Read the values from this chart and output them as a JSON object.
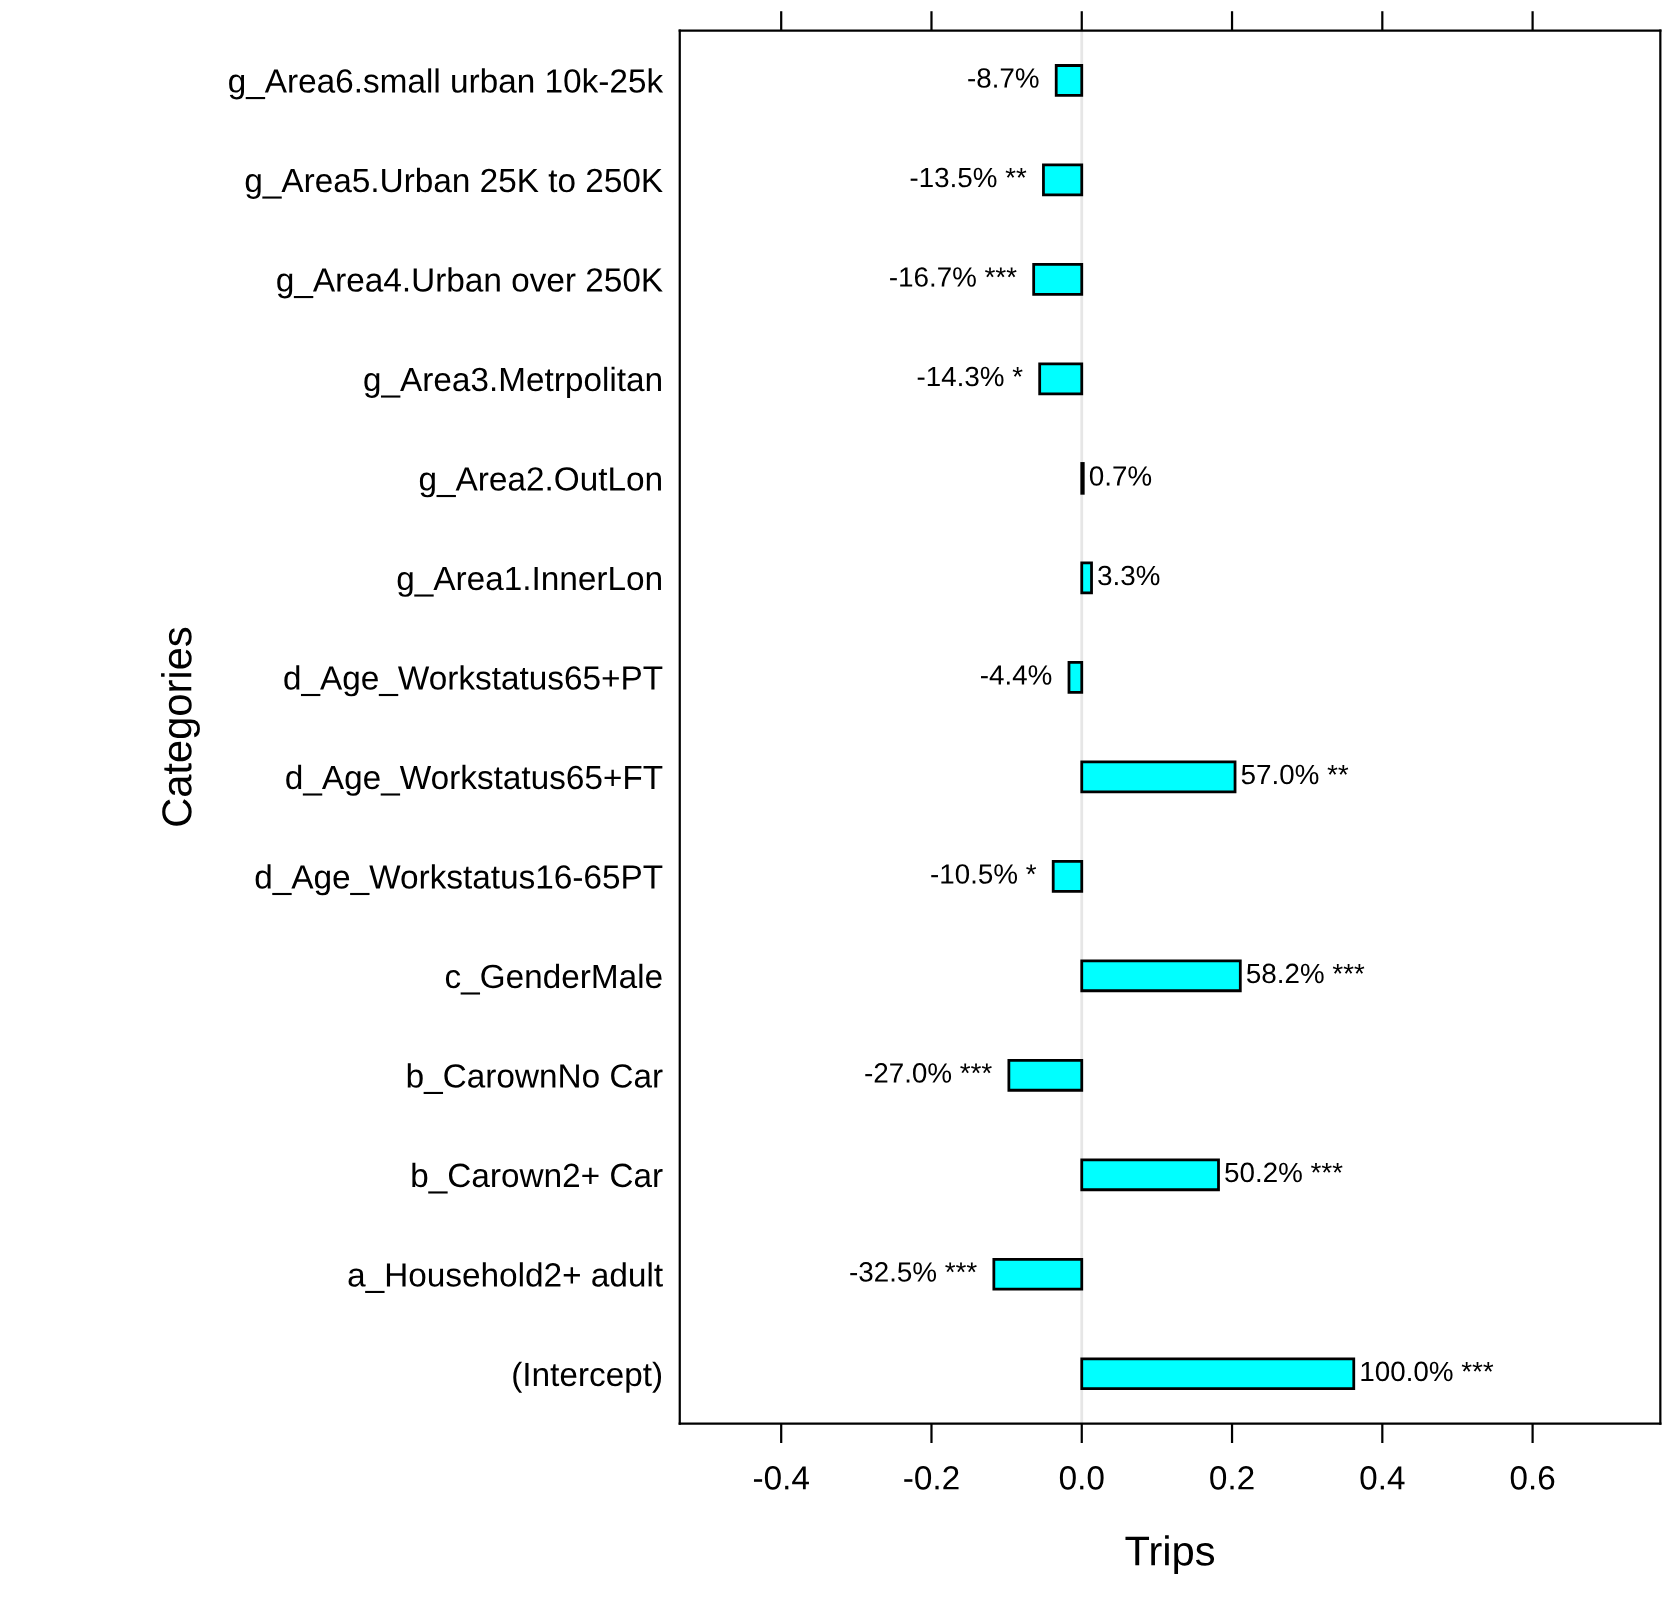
{
  "chart_data": {
    "type": "bar",
    "orientation": "horizontal",
    "xlabel": "Trips",
    "ylabel": "Categories",
    "categories": [
      "g_Area6.small urban 10k-25k",
      "g_Area5.Urban 25K to 250K",
      "g_Area4.Urban over 250K",
      "g_Area3.Metrpolitan",
      "g_Area2.OutLon",
      "g_Area1.InnerLon",
      "d_Age_Workstatus65+PT",
      "d_Age_Workstatus65+FT",
      "d_Age_Workstatus16-65PT",
      "c_GenderMale",
      "b_CarownNo Car",
      "b_Carown2+ Car",
      "a_Household2+ adult",
      "(Intercept)"
    ],
    "values": [
      -0.034,
      -0.051,
      -0.064,
      -0.056,
      0.002,
      0.013,
      -0.017,
      0.204,
      -0.038,
      0.211,
      -0.097,
      0.182,
      -0.117,
      0.362
    ],
    "annotations": [
      {
        "text": "-8.7%",
        "x": -0.034,
        "y": "g_Area6.small urban 10k-25k"
      },
      {
        "text": "-13.5% **",
        "x": -0.051,
        "y": "g_Area5.Urban 25K to 250K"
      },
      {
        "text": "-16.7% ***",
        "x": -0.064,
        "y": "g_Area4.Urban over 250K"
      },
      {
        "text": "-14.3% *",
        "x": -0.056,
        "y": "g_Area3.Metrpolitan"
      },
      {
        "text": "0.7%",
        "x": 0.002,
        "y": "g_Area2.OutLon"
      },
      {
        "text": "3.3%",
        "x": 0.013,
        "y": "g_Area1.InnerLon"
      },
      {
        "text": "-4.4%",
        "x": -0.017,
        "y": "d_Age_Workstatus65+PT"
      },
      {
        "text": "57.0% **",
        "x": 0.204,
        "y": "d_Age_Workstatus65+FT"
      },
      {
        "text": "-10.5% *",
        "x": -0.038,
        "y": "d_Age_Workstatus16-65PT"
      },
      {
        "text": "58.2% ***",
        "x": 0.211,
        "y": "c_GenderMale"
      },
      {
        "text": "-27.0% ***",
        "x": -0.097,
        "y": "b_CarownNo Car"
      },
      {
        "text": "50.2% ***",
        "x": 0.182,
        "y": "b_Carown2+ Car"
      },
      {
        "text": "-32.5% ***",
        "x": -0.117,
        "y": "a_Household2+ adult"
      },
      {
        "text": "100.0% ***",
        "x": 0.362,
        "y": "(Intercept)"
      }
    ],
    "color": "#00ffff",
    "xlim": [
      -0.535,
      0.77
    ],
    "xticks": [
      -0.4,
      -0.2,
      {
        "value": 0,
        "label": "0.0"
      },
      0.2,
      0.4,
      0.6
    ],
    "ref_lines": [
      {
        "axis": "x",
        "value": 0,
        "color": "#e6e6e6"
      }
    ],
    "grid": false,
    "legend": false
  }
}
